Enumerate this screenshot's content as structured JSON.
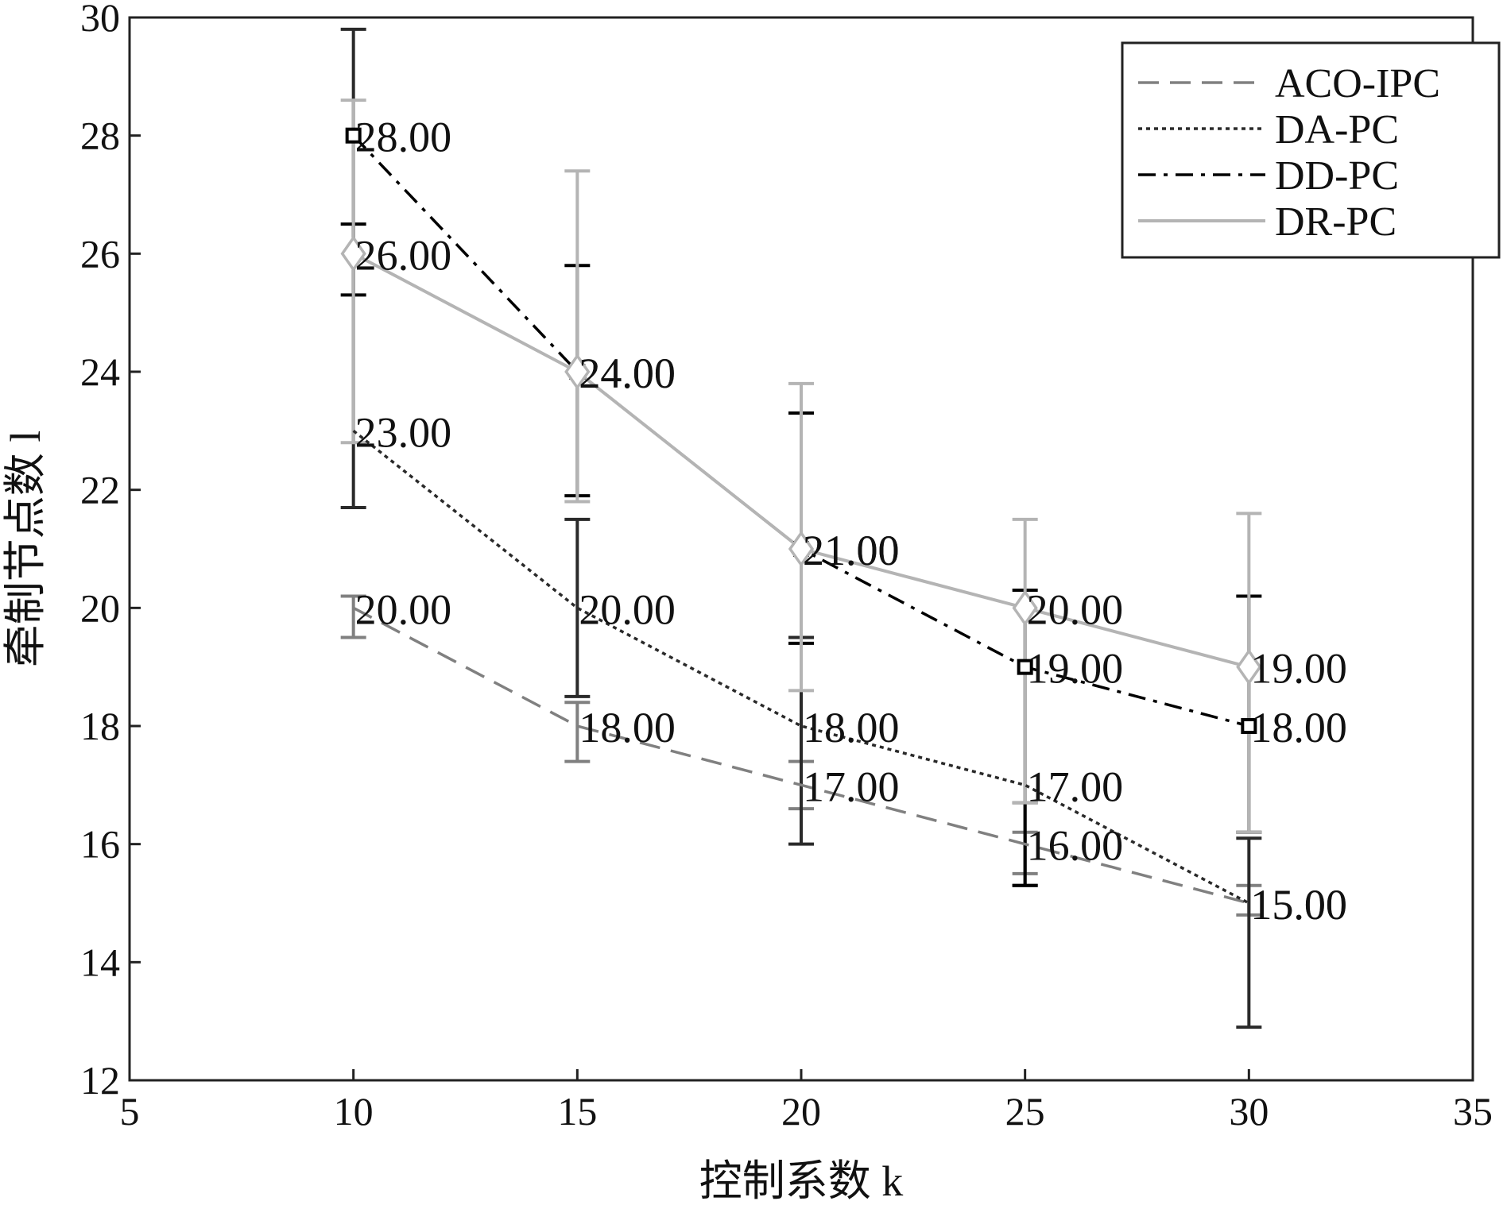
{
  "chart_data": {
    "type": "line",
    "title": "",
    "xlabel": "控制系数 k",
    "ylabel": "牵制节点数 l",
    "xlim": [
      5,
      35
    ],
    "ylim": [
      12,
      30
    ],
    "xticks": [
      5,
      10,
      15,
      20,
      25,
      30,
      35
    ],
    "yticks": [
      12,
      14,
      16,
      18,
      20,
      22,
      24,
      26,
      28,
      30
    ],
    "grid": false,
    "legend_position": "top-right",
    "x": [
      10,
      15,
      20,
      25,
      30
    ],
    "series": [
      {
        "name": "ACO-IPC",
        "values": [
          20,
          18,
          17,
          16,
          15
        ],
        "error_low": [
          19.5,
          17.4,
          16.6,
          15.5,
          14.8
        ],
        "error_high": [
          20.2,
          18.4,
          17.4,
          16.2,
          15.3
        ],
        "labels": [
          "20.00",
          "18.00",
          "17.00",
          "16.00",
          "15.00"
        ],
        "color": "#808080",
        "line_style": "dashed",
        "marker": "none"
      },
      {
        "name": "DA-PC",
        "values": [
          23,
          20,
          18,
          17,
          15
        ],
        "error_low": [
          21.7,
          18.5,
          16.0,
          15.3,
          12.9
        ],
        "error_high": [
          29.8,
          21.5,
          19.5,
          16.7,
          16.1
        ],
        "labels": [
          "23.00",
          "20.00",
          "18.00",
          "17.00",
          "15.00"
        ],
        "color": "#2a2a2a",
        "line_style": "dotted",
        "marker": "none"
      },
      {
        "name": "DD-PC",
        "values": [
          28,
          24,
          21,
          19,
          18
        ],
        "error_low": [
          25.3,
          21.9,
          19.4,
          15.3,
          16.2
        ],
        "error_high": [
          26.5,
          25.8,
          23.3,
          20.3,
          20.2
        ],
        "labels": [
          "28.00",
          "24.00",
          "21.00",
          "19.00",
          "18.00"
        ],
        "color": "#000000",
        "line_style": "dashdot",
        "marker": "square"
      },
      {
        "name": "DR-PC",
        "values": [
          26,
          24,
          21,
          20,
          19
        ],
        "error_low": [
          22.8,
          21.8,
          18.6,
          16.7,
          16.2
        ],
        "error_high": [
          28.6,
          27.4,
          23.8,
          21.5,
          21.6
        ],
        "labels": [
          "26.00",
          "24.00",
          "21.00",
          "20.00",
          "19.00"
        ],
        "color": "#b4b4b4",
        "line_style": "solid",
        "marker": "diamond"
      }
    ]
  }
}
